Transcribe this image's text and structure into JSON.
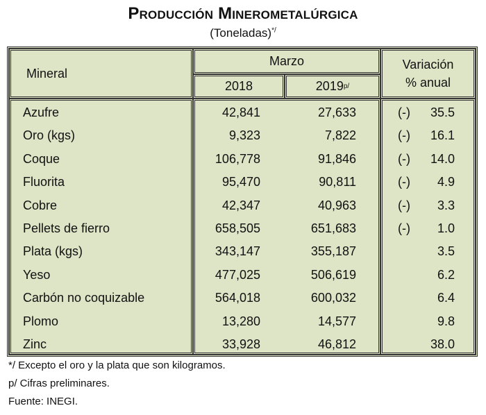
{
  "title": "Producción Minerometalúrgica",
  "subtitle": "(Toneladas)",
  "subtitle_sup": "*/",
  "headers": {
    "mineral": "Mineral",
    "period": "Marzo",
    "y2018": "2018",
    "y2019": "2019",
    "y2019_sup": "p/",
    "variation_line1": "Variación",
    "variation_line2": "% anual"
  },
  "rows": [
    {
      "mineral": "Azufre",
      "v2018": "42,841",
      "v2019": "27,633",
      "sign": "(-)",
      "var": "35.5"
    },
    {
      "mineral": "Oro (kgs)",
      "v2018": "9,323",
      "v2019": "7,822",
      "sign": "(-)",
      "var": "16.1"
    },
    {
      "mineral": "Coque",
      "v2018": "106,778",
      "v2019": "91,846",
      "sign": "(-)",
      "var": "14.0"
    },
    {
      "mineral": "Fluorita",
      "v2018": "95,470",
      "v2019": "90,811",
      "sign": "(-)",
      "var": "4.9"
    },
    {
      "mineral": "Cobre",
      "v2018": "42,347",
      "v2019": "40,963",
      "sign": "(-)",
      "var": "3.3"
    },
    {
      "mineral": "Pellets de fierro",
      "v2018": "658,505",
      "v2019": "651,683",
      "sign": "(-)",
      "var": "1.0"
    },
    {
      "mineral": "Plata (kgs)",
      "v2018": "343,147",
      "v2019": "355,187",
      "sign": "",
      "var": "3.5"
    },
    {
      "mineral": "Yeso",
      "v2018": "477,025",
      "v2019": "506,619",
      "sign": "",
      "var": "6.2"
    },
    {
      "mineral": "Carbón no coquizable",
      "v2018": "564,018",
      "v2019": "600,032",
      "sign": "",
      "var": "6.4"
    },
    {
      "mineral": "Plomo",
      "v2018": "13,280",
      "v2019": "14,577",
      "sign": "",
      "var": "9.8"
    },
    {
      "mineral": "Zinc",
      "v2018": "33,928",
      "v2019": "46,812",
      "sign": "",
      "var": "38.0"
    }
  ],
  "footnotes": [
    "*/ Excepto el oro y la plata que son kilogramos.",
    "p/ Cifras preliminares.",
    "Fuente: INEGI."
  ]
}
